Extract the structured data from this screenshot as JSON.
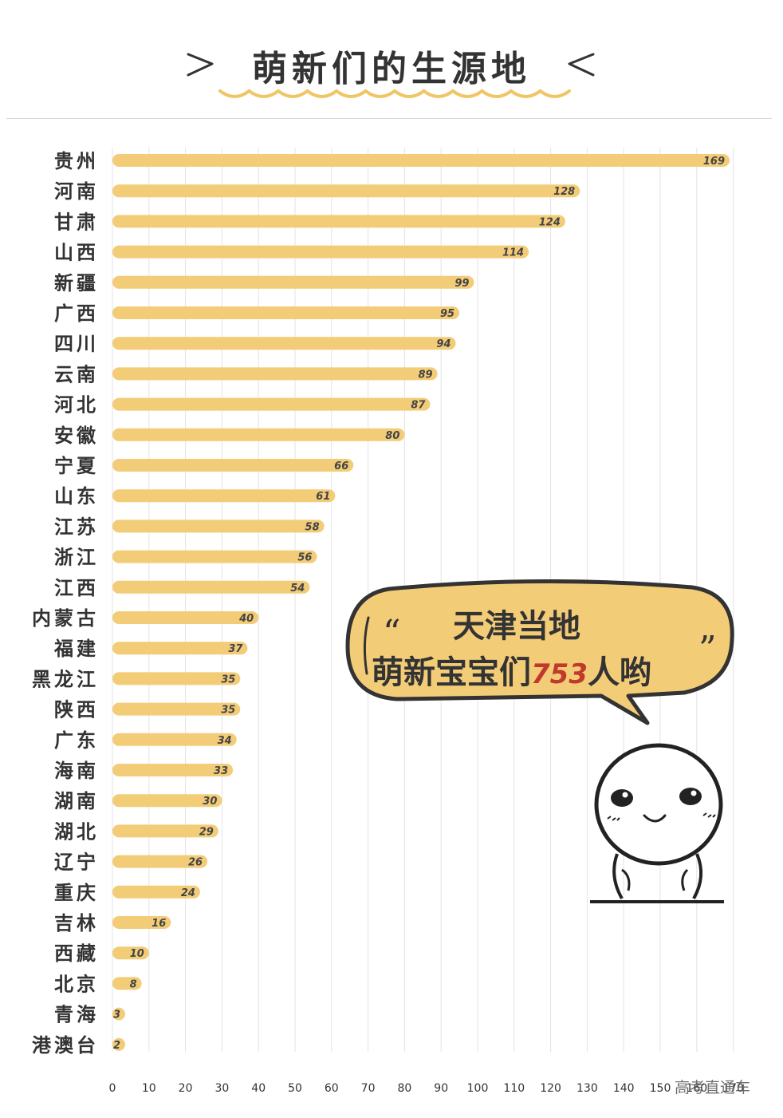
{
  "header": {
    "title": "萌新们的生源地"
  },
  "chart_data": {
    "type": "bar",
    "orientation": "horizontal",
    "title": "萌新们的生源地",
    "categories": [
      "贵州",
      "河南",
      "甘肃",
      "山西",
      "新疆",
      "广西",
      "四川",
      "云南",
      "河北",
      "安徽",
      "宁夏",
      "山东",
      "江苏",
      "浙江",
      "江西",
      "内蒙古",
      "福建",
      "黑龙江",
      "陕西",
      "广东",
      "海南",
      "湖南",
      "湖北",
      "辽宁",
      "重庆",
      "吉林",
      "西藏",
      "北京",
      "青海",
      "港澳台"
    ],
    "values": [
      169,
      128,
      124,
      114,
      99,
      95,
      94,
      89,
      87,
      80,
      66,
      61,
      58,
      56,
      54,
      40,
      37,
      35,
      35,
      34,
      33,
      30,
      29,
      26,
      24,
      16,
      10,
      8,
      3,
      2
    ],
    "x_ticks": [
      0,
      10,
      20,
      30,
      40,
      50,
      60,
      70,
      80,
      90,
      100,
      110,
      120,
      130,
      140,
      150,
      160,
      170
    ],
    "xlim": [
      0,
      170
    ],
    "grid": true,
    "bar_color": "#f3cc78"
  },
  "bubble": {
    "open_quote": "“",
    "line1": "天津当地",
    "line2_pre": "萌新宝宝们",
    "number": "753",
    "line2_post": "人哟",
    "close_quote": "”",
    "fill_color": "#f3cc78"
  },
  "watermark": "高考直通车"
}
